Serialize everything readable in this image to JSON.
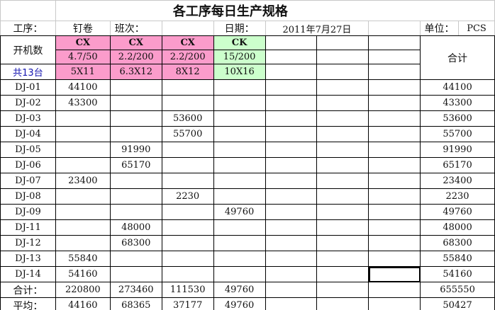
{
  "title": "各工序每日生产规格",
  "header": {
    "process_label": "工序：",
    "process_value": "钉卷",
    "shift_label": "班次：",
    "shift_value": "",
    "date_label": "日期：",
    "date_value": "2011年7月27日",
    "unit_label": "单位：",
    "unit_value": "PCS"
  },
  "machines_label": "开机数",
  "machines_total": "共13台",
  "total_header": "合计",
  "specs": [
    {
      "type": "CX",
      "ratio": "4.7/50",
      "size": "5X11",
      "color": "#fb9ccb"
    },
    {
      "type": "CX",
      "ratio": "2.2/200",
      "size": "6.3X12",
      "color": "#fb9ccb"
    },
    {
      "type": "CX",
      "ratio": "2.2/200",
      "size": "8X12",
      "color": "#fb9ccb"
    },
    {
      "type": "CK",
      "ratio": "15/200",
      "size": "10X16",
      "color": "#ccffcc"
    }
  ],
  "rows": [
    {
      "id": "DJ-01",
      "values": [
        "44100",
        "",
        "",
        ""
      ],
      "total": "44100"
    },
    {
      "id": "DJ-02",
      "values": [
        "43300",
        "",
        "",
        ""
      ],
      "total": "43300"
    },
    {
      "id": "DJ-03",
      "values": [
        "",
        "",
        "53600",
        ""
      ],
      "total": "53600"
    },
    {
      "id": "DJ-04",
      "values": [
        "",
        "",
        "55700",
        ""
      ],
      "total": "55700"
    },
    {
      "id": "DJ-05",
      "values": [
        "",
        "91990",
        "",
        ""
      ],
      "total": "91990"
    },
    {
      "id": "DJ-06",
      "values": [
        "",
        "65170",
        "",
        ""
      ],
      "total": "65170"
    },
    {
      "id": "DJ-07",
      "values": [
        "23400",
        "",
        "",
        ""
      ],
      "total": "23400"
    },
    {
      "id": "DJ-08",
      "values": [
        "",
        "",
        "2230",
        ""
      ],
      "total": "2230"
    },
    {
      "id": "DJ-09",
      "values": [
        "",
        "",
        "",
        "49760"
      ],
      "total": "49760"
    },
    {
      "id": "DJ-11",
      "values": [
        "",
        "48000",
        "",
        ""
      ],
      "total": "48000"
    },
    {
      "id": "DJ-12",
      "values": [
        "",
        "68300",
        "",
        ""
      ],
      "total": "68300"
    },
    {
      "id": "DJ-13",
      "values": [
        "55840",
        "",
        "",
        ""
      ],
      "total": "55840"
    },
    {
      "id": "DJ-14",
      "values": [
        "54160",
        "",
        "",
        ""
      ],
      "total": "54160"
    }
  ],
  "sum_row": {
    "label": "合计：",
    "values": [
      "220800",
      "273460",
      "111530",
      "49760"
    ],
    "total": "655550"
  },
  "avg_row": {
    "label": "平均：",
    "values": [
      "44160",
      "68365",
      "37177",
      "49760"
    ],
    "total": "50427"
  }
}
